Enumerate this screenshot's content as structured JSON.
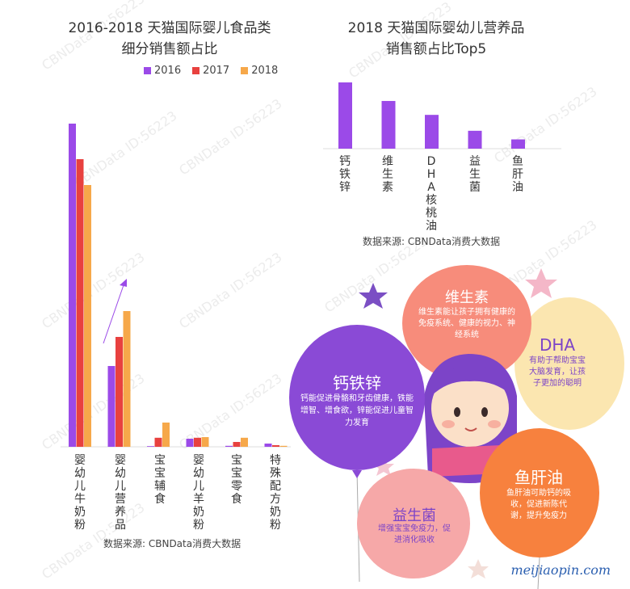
{
  "left_chart": {
    "title_line1": "2016-2018 天猫国际婴儿食品类",
    "title_line2": "细分销售额占比",
    "source": "数据来源:  CBNData消费大数据"
  },
  "right_chart": {
    "title_line1": "2018 天猫国际婴幼儿营养品",
    "title_line2": "销售额占比Top5",
    "source": "数据来源:  CBNData消费大数据"
  },
  "colors": {
    "2016": "#9b4ae8",
    "2017": "#e8413f",
    "2018": "#f6a84a",
    "top5": "#9b4ae8"
  },
  "chart_data": [
    {
      "type": "bar",
      "categories": [
        "婴幼儿牛奶粉",
        "婴幼儿营养品",
        "宝宝辅食",
        "婴幼儿羊奶粉",
        "宝宝零食",
        "特殊配方奶粉"
      ],
      "series": [
        {
          "name": "2016",
          "values": [
            100,
            25,
            0.2,
            2.5,
            0.3,
            1.0
          ]
        },
        {
          "name": "2017",
          "values": [
            89,
            34,
            2.8,
            2.8,
            1.5,
            0.5
          ]
        },
        {
          "name": "2018",
          "values": [
            81,
            42,
            7.5,
            3.0,
            2.8,
            0.3
          ]
        }
      ],
      "ylim": [
        0,
        100
      ],
      "legend": "top",
      "grid": false
    },
    {
      "type": "bar",
      "categories": [
        "钙铁锌",
        "维生素",
        "DHA核桃油",
        "益生菌",
        "鱼肝油"
      ],
      "values": [
        100,
        72,
        51,
        27,
        14
      ],
      "ylim": [
        0,
        100
      ],
      "grid": false
    }
  ],
  "balloons": [
    {
      "title": "维生素",
      "text": "维生素能让孩子拥有健康的免疫系统、健康的视力、神经系统"
    },
    {
      "title": "DHA",
      "text": "有助于帮助宝宝大脑发育，让孩子更加的聪明"
    },
    {
      "title": "钙铁锌",
      "text": "钙能促进骨骼和牙齿健康，铁能增智、增食欲，锌能促进儿童智力发育"
    },
    {
      "title": "益生菌",
      "text": "增强宝宝免疫力，促进消化吸收"
    },
    {
      "title": "鱼肝油",
      "text": "鱼肝油可助钙的吸收，促进新陈代谢，提升免疫力"
    }
  ],
  "watermark": "CBNData ID:56223",
  "footer": "meijiaopin.com"
}
